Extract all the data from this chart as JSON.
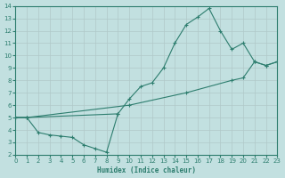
{
  "xlabel": "Humidex (Indice chaleur)",
  "xlim": [
    0,
    23
  ],
  "ylim": [
    2,
    14
  ],
  "xticks": [
    0,
    1,
    2,
    3,
    4,
    5,
    6,
    7,
    8,
    9,
    10,
    11,
    12,
    13,
    14,
    15,
    16,
    17,
    18,
    19,
    20,
    21,
    22,
    23
  ],
  "yticks": [
    2,
    3,
    4,
    5,
    6,
    7,
    8,
    9,
    10,
    11,
    12,
    13,
    14
  ],
  "bg_color": "#c2e0e0",
  "grid_color": "#b0c8c8",
  "line_color": "#2d7d6e",
  "line1_x": [
    0,
    1,
    2,
    3,
    4,
    5,
    6,
    7,
    8,
    9
  ],
  "line1_y": [
    5.0,
    5.0,
    3.8,
    3.6,
    3.5,
    3.4,
    2.8,
    2.5,
    2.2,
    5.3
  ],
  "line2_x": [
    0,
    1,
    9,
    10,
    11,
    12,
    13,
    14,
    15,
    16,
    17,
    18,
    19,
    20,
    21,
    22,
    23
  ],
  "line2_y": [
    5.0,
    5.0,
    5.3,
    6.5,
    7.5,
    7.8,
    9.0,
    11.0,
    12.5,
    13.1,
    13.8,
    12.0,
    10.5,
    11.0,
    9.5,
    9.2,
    9.5
  ],
  "line3_x": [
    0,
    1,
    10,
    15,
    19,
    20,
    21,
    22,
    23
  ],
  "line3_y": [
    5.0,
    5.0,
    6.0,
    7.0,
    8.0,
    8.2,
    9.5,
    9.2,
    9.5
  ]
}
